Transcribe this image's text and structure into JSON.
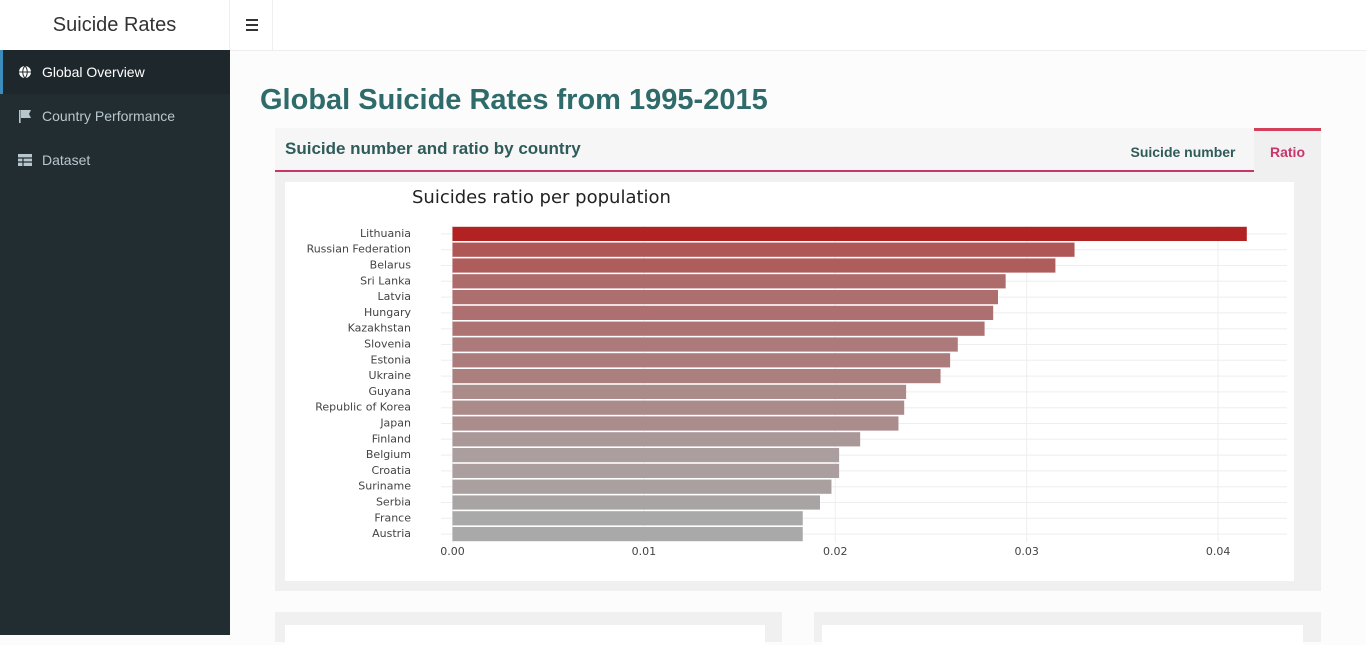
{
  "header": {
    "brand": "Suicide Rates"
  },
  "sidebar": {
    "items": [
      "Global Overview",
      "Country Performance",
      "Dataset"
    ],
    "active": 0
  },
  "page_title": "Global Suicide Rates from 1995-2015",
  "box": {
    "title": "Suicide number and ratio by country",
    "tabs": [
      "Suicide number",
      "Ratio"
    ],
    "active_tab": 1
  },
  "chart_data": {
    "type": "bar",
    "orientation": "horizontal",
    "title": "Suicides ratio per population",
    "categories": [
      "Lithuania",
      "Russian Federation",
      "Belarus",
      "Sri Lanka",
      "Latvia",
      "Hungary",
      "Kazakhstan",
      "Slovenia",
      "Estonia",
      "Ukraine",
      "Guyana",
      "Republic of Korea",
      "Japan",
      "Finland",
      "Belgium",
      "Croatia",
      "Suriname",
      "Serbia",
      "France",
      "Austria"
    ],
    "values": [
      0.0415,
      0.0325,
      0.0315,
      0.0289,
      0.0285,
      0.02825,
      0.0278,
      0.0264,
      0.026,
      0.0255,
      0.0237,
      0.0236,
      0.0233,
      0.0213,
      0.0202,
      0.0202,
      0.0198,
      0.0192,
      0.0183,
      0.0183
    ],
    "color_scale": [
      "#a9a9a9",
      "#b22222"
    ],
    "xlim": [
      -0.0006,
      0.0436
    ],
    "xticks": [
      {
        "value": 0,
        "label": "0.00"
      },
      0.01,
      0.02,
      0.03,
      0.04
    ],
    "grid": true
  }
}
